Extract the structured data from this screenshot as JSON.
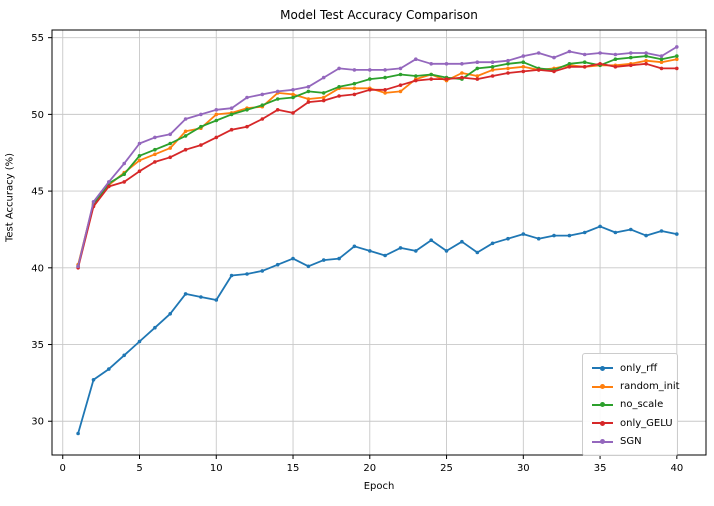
{
  "chart_data": {
    "type": "line",
    "title": "Model Test Accuracy Comparison",
    "xlabel": "Epoch",
    "ylabel": "Test Accuracy (%)",
    "x": [
      1,
      2,
      3,
      4,
      5,
      6,
      7,
      8,
      9,
      10,
      11,
      12,
      13,
      14,
      15,
      16,
      17,
      18,
      19,
      20,
      21,
      22,
      23,
      24,
      25,
      26,
      27,
      28,
      29,
      30,
      31,
      32,
      33,
      34,
      35,
      36,
      37,
      38,
      39,
      40
    ],
    "xticks": [
      0,
      5,
      10,
      15,
      20,
      25,
      30,
      35,
      40
    ],
    "yticks": [
      30,
      35,
      40,
      45,
      50,
      55
    ],
    "xlim": [
      -0.7,
      41.9
    ],
    "ylim": [
      27.8,
      55.5
    ],
    "grid": true,
    "legend_position": "lower right",
    "series": [
      {
        "name": "only_rff",
        "color": "#1f77b4",
        "values": [
          29.2,
          32.7,
          33.4,
          34.3,
          35.2,
          36.1,
          37.0,
          38.3,
          38.1,
          37.9,
          39.5,
          39.6,
          39.8,
          40.2,
          40.6,
          40.1,
          40.5,
          40.6,
          41.4,
          41.1,
          40.8,
          41.3,
          41.1,
          41.8,
          41.1,
          41.7,
          41.0,
          41.6,
          41.9,
          42.2,
          41.9,
          42.1,
          42.1,
          42.3,
          42.7,
          42.3,
          42.5,
          42.1,
          42.4,
          42.2
        ]
      },
      {
        "name": "random_init",
        "color": "#ff7f0e",
        "values": [
          40.2,
          44.2,
          45.4,
          46.2,
          47.0,
          47.4,
          47.8,
          48.9,
          49.1,
          50.0,
          50.1,
          50.4,
          50.5,
          51.4,
          51.3,
          51.0,
          51.1,
          51.7,
          51.7,
          51.7,
          51.4,
          51.5,
          52.3,
          52.6,
          52.2,
          52.7,
          52.5,
          52.9,
          53.0,
          53.1,
          52.9,
          53.0,
          53.2,
          53.1,
          53.2,
          53.2,
          53.3,
          53.5,
          53.4,
          53.6
        ]
      },
      {
        "name": "no_scale",
        "color": "#2ca02c",
        "values": [
          40.1,
          44.1,
          45.5,
          46.1,
          47.3,
          47.7,
          48.1,
          48.6,
          49.2,
          49.6,
          50.0,
          50.3,
          50.6,
          51.0,
          51.1,
          51.5,
          51.4,
          51.8,
          52.0,
          52.3,
          52.4,
          52.6,
          52.5,
          52.6,
          52.4,
          52.3,
          53.0,
          53.1,
          53.3,
          53.4,
          53.0,
          52.9,
          53.3,
          53.4,
          53.2,
          53.6,
          53.7,
          53.8,
          53.6,
          53.8
        ]
      },
      {
        "name": "only_GELU",
        "color": "#d62728",
        "values": [
          40.0,
          44.0,
          45.3,
          45.6,
          46.3,
          46.9,
          47.2,
          47.7,
          48.0,
          48.5,
          49.0,
          49.2,
          49.7,
          50.3,
          50.1,
          50.8,
          50.9,
          51.2,
          51.3,
          51.6,
          51.6,
          51.9,
          52.2,
          52.3,
          52.3,
          52.4,
          52.3,
          52.5,
          52.7,
          52.8,
          52.9,
          52.8,
          53.1,
          53.1,
          53.3,
          53.1,
          53.2,
          53.3,
          53.0,
          53.0
        ]
      },
      {
        "name": "SGN",
        "color": "#9467bd",
        "values": [
          40.1,
          44.3,
          45.6,
          46.8,
          48.1,
          48.5,
          48.7,
          49.7,
          50.0,
          50.3,
          50.4,
          51.1,
          51.3,
          51.5,
          51.6,
          51.8,
          52.4,
          53.0,
          52.9,
          52.9,
          52.9,
          53.0,
          53.6,
          53.3,
          53.3,
          53.3,
          53.4,
          53.4,
          53.5,
          53.8,
          54.0,
          53.7,
          54.1,
          53.9,
          54.0,
          53.9,
          54.0,
          54.0,
          53.8,
          54.4
        ]
      }
    ],
    "style": {
      "grid_color": "#c8c8c8",
      "spine_color": "#000000",
      "tick_label_color": "#000000",
      "plot_background": "#ffffff"
    }
  }
}
